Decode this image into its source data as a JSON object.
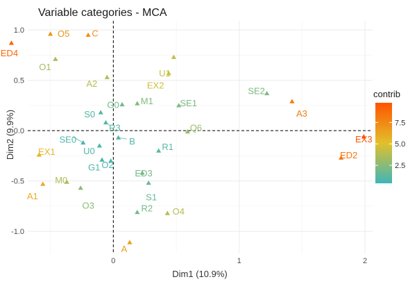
{
  "chart_data": {
    "type": "scatter",
    "title": "Variable categories - MCA",
    "xlabel": "Dim1 (10.9%)",
    "ylabel": "Dim2 (9.9%)",
    "xlim": [
      -0.68,
      2.06
    ],
    "ylim": [
      -1.22,
      1.09
    ],
    "xticks": [
      0,
      1,
      2
    ],
    "yticks": [
      -1.0,
      -0.5,
      0.0,
      0.5,
      1.0
    ],
    "ytick_labels": [
      "-1.0",
      "-0.5",
      "0.0",
      "0.5",
      "1.0"
    ],
    "grid": true,
    "reference_lines": {
      "x": 0,
      "y": 0
    },
    "legend": {
      "title": "contrib",
      "ticks": [
        2.5,
        5.0,
        7.5
      ],
      "tick_labels": [
        "2.5",
        "5.0",
        "7.5"
      ],
      "range": [
        0.4,
        9.8
      ],
      "placement": "right",
      "colors": [
        "#3fb6b8",
        "#e2c02b",
        "#ff5400"
      ]
    },
    "points": [
      {
        "label": "O5",
        "x": -0.5,
        "y": 0.96,
        "contrib": 7.0
      },
      {
        "label": "C",
        "x": -0.2,
        "y": 0.95,
        "contrib": 7.2
      },
      {
        "label": "ED4",
        "x": -0.81,
        "y": 0.87,
        "contrib": 9.0
      },
      {
        "label": "O1",
        "x": -0.46,
        "y": 0.71,
        "contrib": 3.3
      },
      {
        "label": "U1",
        "x": 0.48,
        "y": 0.73,
        "contrib": 4.2
      },
      {
        "label": "A2",
        "x": -0.05,
        "y": 0.53,
        "contrib": 3.8
      },
      {
        "label": "EX2",
        "x": 0.44,
        "y": 0.57,
        "contrib": 4.5
      },
      {
        "label": "SE2",
        "x": 1.22,
        "y": 0.37,
        "contrib": 2.2
      },
      {
        "label": "A3",
        "x": 1.42,
        "y": 0.29,
        "contrib": 8.0
      },
      {
        "label": "G0",
        "x": 0.07,
        "y": 0.26,
        "contrib": 1.9
      },
      {
        "label": "M1",
        "x": 0.19,
        "y": 0.27,
        "contrib": 2.4
      },
      {
        "label": "SE1",
        "x": 0.52,
        "y": 0.25,
        "contrib": 2.2
      },
      {
        "label": "S0",
        "x": -0.1,
        "y": 0.18,
        "contrib": 0.9
      },
      {
        "label": "R3",
        "x": -0.06,
        "y": 0.08,
        "contrib": 1.0
      },
      {
        "label": "Q6",
        "x": 0.59,
        "y": -0.01,
        "contrib": 3.0
      },
      {
        "label": "EX3",
        "x": 1.99,
        "y": -0.06,
        "contrib": 9.8
      },
      {
        "label": "SE0",
        "x": -0.24,
        "y": -0.12,
        "contrib": 0.8
      },
      {
        "label": "B",
        "x": 0.04,
        "y": -0.07,
        "contrib": 0.9
      },
      {
        "label": "U0",
        "x": -0.11,
        "y": -0.15,
        "contrib": 0.8
      },
      {
        "label": "R1",
        "x": 0.36,
        "y": -0.2,
        "contrib": 1.2
      },
      {
        "label": "EX1",
        "x": -0.59,
        "y": -0.24,
        "contrib": 5.5
      },
      {
        "label": "O2",
        "x": -0.09,
        "y": -0.29,
        "contrib": 0.7
      },
      {
        "label": "ED2",
        "x": 1.81,
        "y": -0.27,
        "contrib": 8.3
      },
      {
        "label": "G1",
        "x": -0.02,
        "y": -0.3,
        "contrib": 0.8
      },
      {
        "label": "ED3",
        "x": 0.23,
        "y": -0.42,
        "contrib": 2.0
      },
      {
        "label": "M0",
        "x": -0.37,
        "y": -0.51,
        "contrib": 3.6
      },
      {
        "label": "A1",
        "x": -0.56,
        "y": -0.53,
        "contrib": 6.0
      },
      {
        "label": "O3",
        "x": -0.26,
        "y": -0.57,
        "contrib": 2.6
      },
      {
        "label": "S1",
        "x": 0.28,
        "y": -0.52,
        "contrib": 1.6
      },
      {
        "label": "R2",
        "x": 0.19,
        "y": -0.81,
        "contrib": 2.0
      },
      {
        "label": "O4",
        "x": 0.43,
        "y": -0.82,
        "contrib": 3.8
      },
      {
        "label": "A",
        "x": 0.13,
        "y": -1.11,
        "contrib": 6.6
      }
    ]
  }
}
